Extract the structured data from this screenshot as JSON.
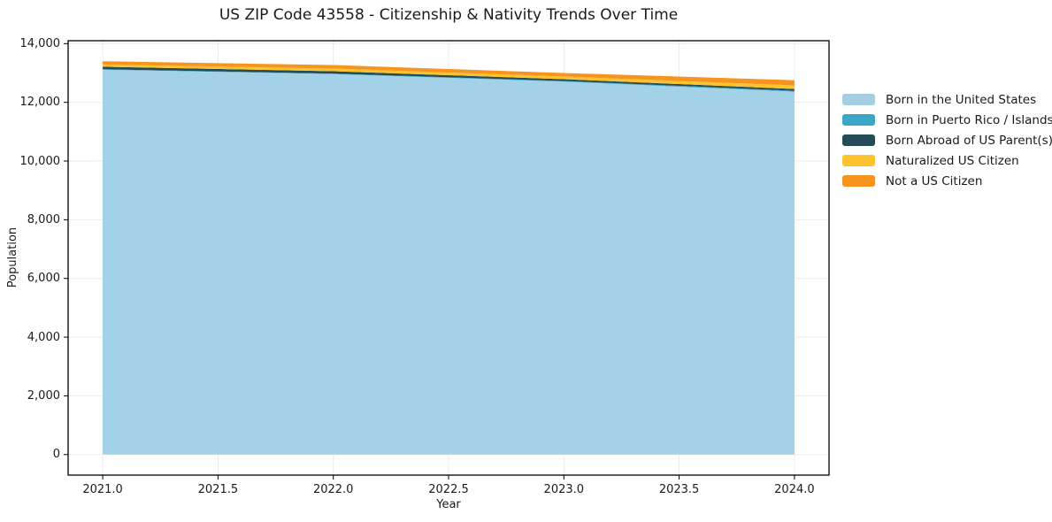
{
  "figure": {
    "background": "#ffffff",
    "text_color": "#1a1a1a",
    "grid_color": "#ebebeb",
    "spine_color": "#000000"
  },
  "chart_data": {
    "type": "area",
    "stacked": true,
    "title": "US ZIP Code 43558 - Citizenship & Nativity Trends Over Time",
    "xlabel": "Year",
    "ylabel": "Population",
    "x": [
      2021,
      2022,
      2023,
      2024
    ],
    "series": [
      {
        "name": "Born in the United States",
        "color": "#a3d1e8",
        "swatch_color": "#a6cee3",
        "values": [
          13110,
          12965,
          12705,
          12365
        ]
      },
      {
        "name": "Born in Puerto Rico / Islands",
        "color": "#3ba7c6",
        "swatch_color": "#3ba7c6",
        "values": [
          15,
          15,
          25,
          30
        ]
      },
      {
        "name": "Born Abroad of US Parent(s)",
        "color": "#254b59",
        "swatch_color": "#254b59",
        "values": [
          90,
          80,
          60,
          60
        ]
      },
      {
        "name": "Naturalized US Citizen",
        "color": "#fcc32d",
        "swatch_color": "#fcc32d",
        "values": [
          75,
          90,
          90,
          120
        ]
      },
      {
        "name": "Not a US Citizen",
        "color": "#f7941f",
        "swatch_color": "#f7941f",
        "values": [
          110,
          120,
          120,
          180
        ]
      }
    ],
    "totals": [
      13400,
      13270,
      13000,
      12755
    ],
    "x_ticks": [
      2021.0,
      2021.5,
      2022.0,
      2022.5,
      2023.0,
      2023.5,
      2024.0
    ],
    "x_tick_labels": [
      "2021.0",
      "2021.5",
      "2022.0",
      "2022.5",
      "2023.0",
      "2023.5",
      "2024.0"
    ],
    "y_ticks": [
      0,
      2000,
      4000,
      6000,
      8000,
      10000,
      12000,
      14000
    ],
    "y_tick_labels": [
      "0",
      "2,000",
      "4,000",
      "6,000",
      "8,000",
      "10,000",
      "12,000",
      "14,000"
    ],
    "x_range": [
      2020.85,
      2024.15
    ],
    "y_range": [
      -700,
      14100
    ],
    "grid": true,
    "legend_position": "right-outside"
  }
}
